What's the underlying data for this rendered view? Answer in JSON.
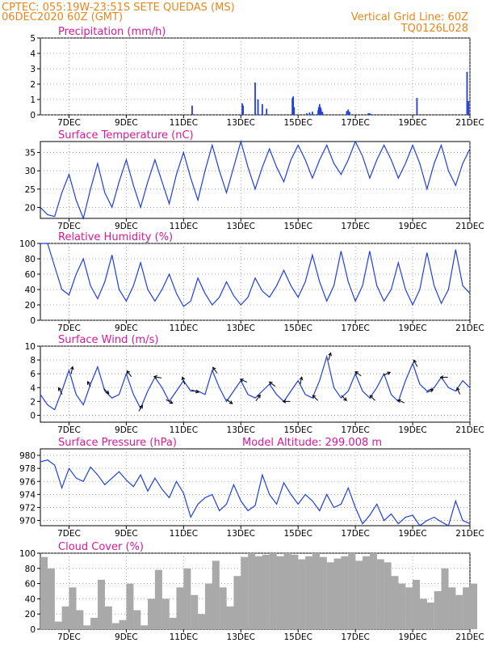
{
  "header": {
    "line1_left": "CPTEC:   055:19W-23:51S  SETE QUEDAS (MS)",
    "line2_left": "06DEC2020 60Z (GMT)",
    "line1_right": "Vertical Grid Line: 60Z",
    "line2_right": "TQ0126L028"
  },
  "colors": {
    "header": "#e8861c",
    "title": "#d6189a",
    "line": "#1f3fe0",
    "cloud": "#a9a9a9",
    "arrow": "#000000"
  },
  "x_ticks": [
    "7DEC",
    "9DEC",
    "11DEC",
    "13DEC",
    "15DEC",
    "17DEC",
    "19DEC",
    "21DEC"
  ],
  "model_altitude": "Model Altitude: 299.008 m",
  "chart_data": [
    {
      "type": "bar",
      "title": "Precipitation (mm/h)",
      "x_unit": "days from 6DEC 00Z",
      "ylim": [
        0,
        5
      ],
      "y_ticks": [
        "0",
        "1",
        "2",
        "3",
        "4",
        "5"
      ],
      "x": [
        1.0,
        5.3,
        7.05,
        7.08,
        7.5,
        7.6,
        7.75,
        7.9,
        8.8,
        8.83,
        8.86,
        9.3,
        9.4,
        9.5,
        9.7,
        9.72,
        9.75,
        9.78,
        9.8,
        9.85,
        10.7,
        10.75,
        10.8,
        11.45,
        11.5,
        11.55,
        13.15,
        14.9,
        14.95
      ],
      "values": [
        0.05,
        0.6,
        0.75,
        0.6,
        2.1,
        1.0,
        0.7,
        0.4,
        1.1,
        1.2,
        0.5,
        0.1,
        0.15,
        0.2,
        0.3,
        0.5,
        0.7,
        0.5,
        0.4,
        0.2,
        0.25,
        0.35,
        0.2,
        0.1,
        0.1,
        0.05,
        1.1,
        2.8,
        0.9
      ]
    },
    {
      "type": "line",
      "title": "Surface Temperature (nC)",
      "x_unit": "days from 6DEC 00Z",
      "ylim": [
        17,
        38
      ],
      "y_ticks": [
        "20",
        "25",
        "30",
        "35"
      ],
      "x": [
        0.0,
        0.25,
        0.5,
        0.75,
        1.0,
        1.25,
        1.5,
        1.75,
        2.0,
        2.25,
        2.5,
        2.75,
        3.0,
        3.25,
        3.5,
        3.75,
        4.0,
        4.25,
        4.5,
        4.75,
        5.0,
        5.25,
        5.5,
        5.75,
        6.0,
        6.25,
        6.5,
        6.75,
        7.0,
        7.25,
        7.5,
        7.75,
        8.0,
        8.25,
        8.5,
        8.75,
        9.0,
        9.25,
        9.5,
        9.75,
        10.0,
        10.25,
        10.5,
        10.75,
        11.0,
        11.25,
        11.5,
        11.75,
        12.0,
        12.25,
        12.5,
        12.75,
        13.0,
        13.25,
        13.5,
        13.75,
        14.0,
        14.25,
        14.5,
        14.75,
        15.0
      ],
      "values": [
        20,
        18,
        17.5,
        24,
        29,
        22,
        17,
        25,
        32,
        24,
        20,
        27,
        33,
        26,
        20,
        27,
        33,
        27,
        21,
        29,
        35,
        28,
        22,
        30,
        37,
        30,
        24,
        31,
        38,
        31,
        25,
        31,
        36,
        31,
        27,
        33,
        37,
        33,
        28,
        33,
        37,
        32,
        29,
        33,
        38,
        34,
        28,
        33,
        37,
        33,
        28,
        32,
        37,
        32,
        25,
        32,
        37,
        30,
        26,
        32,
        36
      ]
    },
    {
      "type": "line",
      "title": "Relative Humidity (%)",
      "x_unit": "days from 6DEC 00Z",
      "ylim": [
        0,
        100
      ],
      "y_ticks": [
        "0",
        "20",
        "40",
        "60",
        "80",
        "100"
      ],
      "x": [
        0.0,
        0.25,
        0.5,
        0.75,
        1.0,
        1.25,
        1.5,
        1.75,
        2.0,
        2.25,
        2.5,
        2.75,
        3.0,
        3.25,
        3.5,
        3.75,
        4.0,
        4.25,
        4.5,
        4.75,
        5.0,
        5.25,
        5.5,
        5.75,
        6.0,
        6.25,
        6.5,
        6.75,
        7.0,
        7.25,
        7.5,
        7.75,
        8.0,
        8.25,
        8.5,
        8.75,
        9.0,
        9.25,
        9.5,
        9.75,
        10.0,
        10.25,
        10.5,
        10.75,
        11.0,
        11.25,
        11.5,
        11.75,
        12.0,
        12.25,
        12.5,
        12.75,
        13.0,
        13.25,
        13.5,
        13.75,
        14.0,
        14.25,
        14.5,
        14.75,
        15.0
      ],
      "values": [
        100,
        100,
        70,
        40,
        33,
        60,
        80,
        45,
        28,
        50,
        85,
        40,
        25,
        45,
        75,
        40,
        25,
        40,
        60,
        35,
        18,
        25,
        55,
        35,
        20,
        30,
        50,
        32,
        20,
        30,
        55,
        38,
        30,
        45,
        65,
        45,
        30,
        50,
        85,
        50,
        25,
        45,
        90,
        50,
        25,
        45,
        90,
        45,
        25,
        40,
        75,
        40,
        20,
        40,
        88,
        45,
        22,
        40,
        92,
        45,
        35
      ]
    },
    {
      "type": "line",
      "title": "Surface Wind (m/s)",
      "x_unit": "days from 6DEC 00Z",
      "ylim": [
        -1,
        10
      ],
      "y_ticks": [
        "0",
        "2",
        "4",
        "6",
        "8",
        "10"
      ],
      "x": [
        0.0,
        0.25,
        0.5,
        0.75,
        1.0,
        1.25,
        1.5,
        1.75,
        2.0,
        2.25,
        2.5,
        2.75,
        3.0,
        3.25,
        3.5,
        3.75,
        4.0,
        4.25,
        4.5,
        4.75,
        5.0,
        5.25,
        5.5,
        5.75,
        6.0,
        6.25,
        6.5,
        6.75,
        7.0,
        7.25,
        7.5,
        7.75,
        8.0,
        8.25,
        8.5,
        8.75,
        9.0,
        9.25,
        9.5,
        9.75,
        10.0,
        10.25,
        10.5,
        10.75,
        11.0,
        11.25,
        11.5,
        11.75,
        12.0,
        12.25,
        12.5,
        12.75,
        13.0,
        13.25,
        13.5,
        13.75,
        14.0,
        14.25,
        14.5,
        14.75,
        15.0
      ],
      "values": [
        3,
        1.5,
        0.8,
        3.5,
        6.5,
        3,
        1.5,
        4.5,
        7,
        3.5,
        2.5,
        3,
        6,
        3,
        1,
        3.5,
        5.5,
        4,
        2,
        3.5,
        5,
        3.5,
        3.5,
        3,
        6.5,
        4,
        2,
        3.5,
        5,
        3,
        2.5,
        3.5,
        4.5,
        3,
        2,
        3.5,
        5,
        3,
        2.5,
        5,
        8.5,
        4,
        2.5,
        3.5,
        6,
        3.5,
        2.5,
        4,
        6,
        3,
        2,
        5,
        7.5,
        4.5,
        3.5,
        4,
        5.5,
        4,
        3.5,
        5,
        4
      ],
      "arrows": [
        {
          "x": 0.7,
          "dir": [
            -0.5,
            -0.9
          ]
        },
        {
          "x": 1.1,
          "dir": [
            0.2,
            -1
          ]
        },
        {
          "x": 1.7,
          "dir": [
            -0.4,
            -0.7
          ]
        },
        {
          "x": 2.3,
          "dir": [
            0.7,
            0.7
          ]
        },
        {
          "x": 3.1,
          "dir": [
            -0.6,
            -0.8
          ]
        },
        {
          "x": 3.5,
          "dir": [
            0.5,
            -0.8
          ]
        },
        {
          "x": 4.1,
          "dir": [
            -1,
            -0.2
          ]
        },
        {
          "x": 4.5,
          "dir": [
            0.9,
            0.5
          ]
        },
        {
          "x": 5.0,
          "dir": [
            -0.3,
            -1
          ]
        },
        {
          "x": 5.4,
          "dir": [
            1,
            0.3
          ]
        },
        {
          "x": 6.1,
          "dir": [
            -0.6,
            -0.8
          ]
        },
        {
          "x": 6.6,
          "dir": [
            0.8,
            0.6
          ]
        },
        {
          "x": 7.1,
          "dir": [
            -0.9,
            -0.4
          ]
        },
        {
          "x": 7.6,
          "dir": [
            0.6,
            -0.8
          ]
        },
        {
          "x": 8.1,
          "dir": [
            -0.8,
            -0.6
          ]
        },
        {
          "x": 8.6,
          "dir": [
            -1,
            0
          ]
        },
        {
          "x": 9.1,
          "dir": [
            0.2,
            -1
          ]
        },
        {
          "x": 9.6,
          "dir": [
            -0.7,
            -0.7
          ]
        },
        {
          "x": 10.1,
          "dir": [
            0.3,
            -1
          ]
        },
        {
          "x": 10.6,
          "dir": [
            0.7,
            0.7
          ]
        },
        {
          "x": 11.1,
          "dir": [
            -0.8,
            -0.6
          ]
        },
        {
          "x": 11.6,
          "dir": [
            -0.7,
            -0.7
          ]
        },
        {
          "x": 12.1,
          "dir": [
            0.9,
            -0.4
          ]
        },
        {
          "x": 12.6,
          "dir": [
            -0.9,
            -0.4
          ]
        },
        {
          "x": 13.1,
          "dir": [
            -0.5,
            -0.9
          ]
        },
        {
          "x": 13.6,
          "dir": [
            0.9,
            -0.4
          ]
        },
        {
          "x": 14.1,
          "dir": [
            -1,
            0
          ]
        },
        {
          "x": 14.6,
          "dir": [
            -0.4,
            -0.9
          ]
        }
      ]
    },
    {
      "type": "line",
      "title": "Surface Pressure (hPa)",
      "x_unit": "days from 6DEC 00Z",
      "ylim": [
        969.2,
        981
      ],
      "y_ticks": [
        "970",
        "972",
        "974",
        "976",
        "978",
        "980"
      ],
      "x": [
        0.0,
        0.25,
        0.5,
        0.75,
        1.0,
        1.25,
        1.5,
        1.75,
        2.0,
        2.25,
        2.5,
        2.75,
        3.0,
        3.25,
        3.5,
        3.75,
        4.0,
        4.25,
        4.5,
        4.75,
        5.0,
        5.25,
        5.5,
        5.75,
        6.0,
        6.25,
        6.5,
        6.75,
        7.0,
        7.25,
        7.5,
        7.75,
        8.0,
        8.25,
        8.5,
        8.75,
        9.0,
        9.25,
        9.5,
        9.75,
        10.0,
        10.25,
        10.5,
        10.75,
        11.0,
        11.25,
        11.5,
        11.75,
        12.0,
        12.25,
        12.5,
        12.75,
        13.0,
        13.25,
        13.5,
        13.75,
        14.0,
        14.25,
        14.5,
        14.75,
        15.0
      ],
      "values": [
        979,
        979.3,
        978.5,
        975,
        978,
        976.5,
        976,
        978.2,
        977,
        975.5,
        976.5,
        977.5,
        976.2,
        975.2,
        977,
        974.5,
        976.5,
        974.8,
        973.5,
        976,
        974.2,
        970.5,
        972.5,
        973.5,
        974,
        971.5,
        972.5,
        975.5,
        973,
        971.5,
        972.3,
        977,
        974,
        972.5,
        975.8,
        974,
        972.5,
        974,
        973,
        971.5,
        974,
        972,
        972.5,
        975,
        972,
        969.5,
        970.8,
        972.5,
        970,
        971,
        969.5,
        970.5,
        970.8,
        969.2,
        970,
        970.5,
        969.8,
        969.2,
        973,
        970,
        969.5
      ]
    },
    {
      "type": "bar",
      "title": "Cloud Cover (%)",
      "x_unit": "days from 6DEC 00Z",
      "ylim": [
        0,
        100
      ],
      "y_ticks": [
        "0",
        "20",
        "40",
        "60",
        "80",
        "100"
      ],
      "x": [
        0.0,
        0.25,
        0.5,
        0.75,
        1.0,
        1.25,
        1.5,
        1.75,
        2.0,
        2.25,
        2.5,
        2.75,
        3.0,
        3.25,
        3.5,
        3.75,
        4.0,
        4.25,
        4.5,
        4.75,
        5.0,
        5.25,
        5.5,
        5.75,
        6.0,
        6.25,
        6.5,
        6.75,
        7.0,
        7.25,
        7.5,
        7.75,
        8.0,
        8.25,
        8.5,
        8.75,
        9.0,
        9.25,
        9.5,
        9.75,
        10.0,
        10.25,
        10.5,
        10.75,
        11.0,
        11.25,
        11.5,
        11.75,
        12.0,
        12.25,
        12.5,
        12.75,
        13.0,
        13.25,
        13.5,
        13.75,
        14.0,
        14.25,
        14.5,
        14.75,
        15.0
      ],
      "values": [
        95,
        80,
        10,
        30,
        55,
        25,
        5,
        15,
        65,
        30,
        8,
        12,
        60,
        25,
        5,
        40,
        78,
        40,
        15,
        55,
        80,
        45,
        20,
        60,
        90,
        55,
        30,
        70,
        95,
        100,
        96,
        98,
        100,
        96,
        100,
        98,
        92,
        96,
        100,
        95,
        88,
        93,
        96,
        100,
        90,
        96,
        100,
        92,
        88,
        70,
        60,
        55,
        65,
        40,
        35,
        50,
        80,
        55,
        45,
        55,
        60
      ]
    }
  ]
}
